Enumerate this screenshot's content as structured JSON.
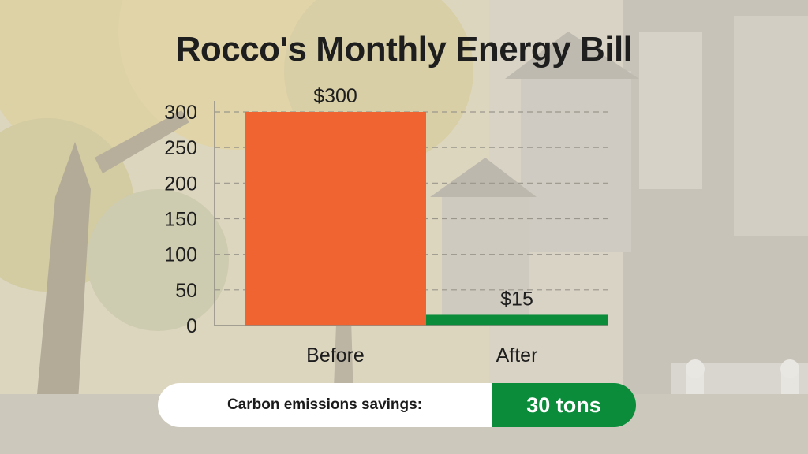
{
  "chart_data": {
    "type": "bar",
    "title": "Rocco's Monthly Energy Bill",
    "categories": [
      "Before",
      "After"
    ],
    "values": [
      300,
      15
    ],
    "value_labels": [
      "$300",
      "$15"
    ],
    "bar_colors": [
      "#f06431",
      "#0a8c3a"
    ],
    "ylim": [
      0,
      300
    ],
    "yticks": [
      0,
      50,
      100,
      150,
      200,
      250,
      300
    ],
    "xlabel": "",
    "ylabel": "",
    "grid": true
  },
  "banner": {
    "label": "Carbon emissions savings:",
    "value": "30 tons"
  },
  "colors": {
    "title": "#1e1e1e",
    "savings_green": "#0a8c3a",
    "before_orange": "#f06431"
  }
}
